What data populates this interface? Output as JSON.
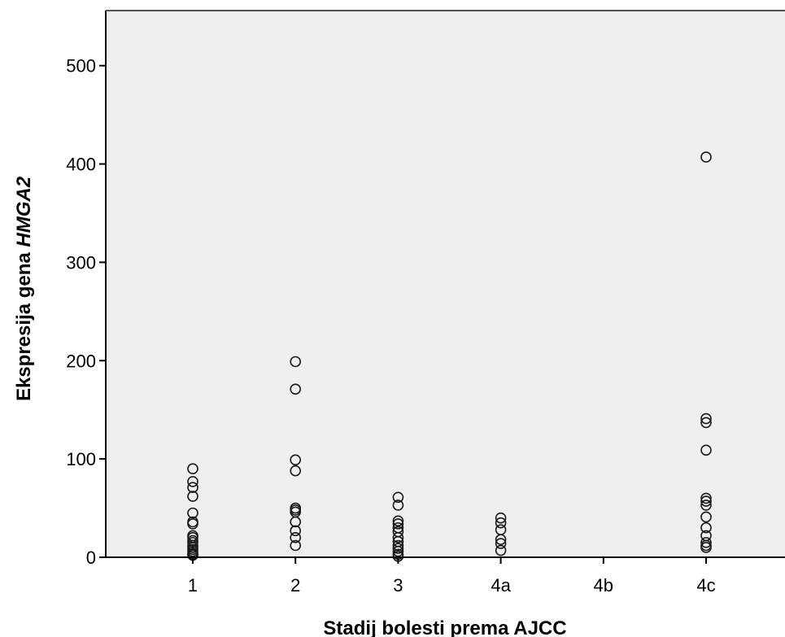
{
  "chart_data": {
    "type": "scatter",
    "title": "",
    "xlabel": "Stadij bolesti prema AJCC",
    "ylabel_prefix": "Ekspresija gena ",
    "ylabel_gene": "HMGA2",
    "categories": [
      "1",
      "2",
      "3",
      "4a",
      "4b",
      "4c"
    ],
    "y_ticks": [
      "0",
      "100",
      "200",
      "300",
      "400",
      "500"
    ],
    "ylim": [
      0,
      560
    ],
    "grid": false,
    "legend": "none",
    "colors": {
      "plot_background": "#efefef",
      "marker_stroke": "#1a1a1a",
      "axis": "#000000"
    },
    "series": [
      {
        "points": [
          {
            "x": "1",
            "y": 90
          },
          {
            "x": "1",
            "y": 77
          },
          {
            "x": "1",
            "y": 71
          },
          {
            "x": "1",
            "y": 62
          },
          {
            "x": "1",
            "y": 45
          },
          {
            "x": "1",
            "y": 36
          },
          {
            "x": "1",
            "y": 34
          },
          {
            "x": "1",
            "y": 22
          },
          {
            "x": "1",
            "y": 20
          },
          {
            "x": "1",
            "y": 17
          },
          {
            "x": "1",
            "y": 15
          },
          {
            "x": "1",
            "y": 12
          },
          {
            "x": "1",
            "y": 10
          },
          {
            "x": "1",
            "y": 8
          },
          {
            "x": "1",
            "y": 6
          },
          {
            "x": "1",
            "y": 4
          },
          {
            "x": "1",
            "y": 3
          },
          {
            "x": "1",
            "y": 2
          },
          {
            "x": "2",
            "y": 199
          },
          {
            "x": "2",
            "y": 171
          },
          {
            "x": "2",
            "y": 99
          },
          {
            "x": "2",
            "y": 88
          },
          {
            "x": "2",
            "y": 50
          },
          {
            "x": "2",
            "y": 48
          },
          {
            "x": "2",
            "y": 46
          },
          {
            "x": "2",
            "y": 36
          },
          {
            "x": "2",
            "y": 27
          },
          {
            "x": "2",
            "y": 20
          },
          {
            "x": "2",
            "y": 12
          },
          {
            "x": "3",
            "y": 61
          },
          {
            "x": "3",
            "y": 53
          },
          {
            "x": "3",
            "y": 37
          },
          {
            "x": "3",
            "y": 34
          },
          {
            "x": "3",
            "y": 30
          },
          {
            "x": "3",
            "y": 26
          },
          {
            "x": "3",
            "y": 20
          },
          {
            "x": "3",
            "y": 16
          },
          {
            "x": "3",
            "y": 12
          },
          {
            "x": "3",
            "y": 9
          },
          {
            "x": "3",
            "y": 6
          },
          {
            "x": "3",
            "y": 3
          },
          {
            "x": "3",
            "y": 1
          },
          {
            "x": "4a",
            "y": 40
          },
          {
            "x": "4a",
            "y": 35
          },
          {
            "x": "4a",
            "y": 28
          },
          {
            "x": "4a",
            "y": 18
          },
          {
            "x": "4a",
            "y": 14
          },
          {
            "x": "4a",
            "y": 7
          },
          {
            "x": "4c",
            "y": 407
          },
          {
            "x": "4c",
            "y": 141
          },
          {
            "x": "4c",
            "y": 137
          },
          {
            "x": "4c",
            "y": 109
          },
          {
            "x": "4c",
            "y": 60
          },
          {
            "x": "4c",
            "y": 57
          },
          {
            "x": "4c",
            "y": 53
          },
          {
            "x": "4c",
            "y": 41
          },
          {
            "x": "4c",
            "y": 30
          },
          {
            "x": "4c",
            "y": 22
          },
          {
            "x": "4c",
            "y": 15
          },
          {
            "x": "4c",
            "y": 12
          },
          {
            "x": "4c",
            "y": 10
          }
        ]
      }
    ]
  }
}
